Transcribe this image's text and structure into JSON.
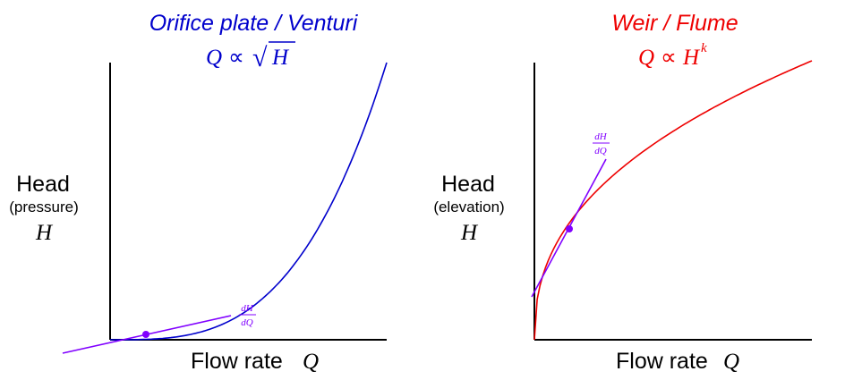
{
  "colors": {
    "left_accent": "#0000cc",
    "right_accent": "#ee0000",
    "tangent": "#8000ff",
    "axis": "#000000"
  },
  "panels": [
    {
      "title": "Orifice plate / Venturi",
      "formula_q": "Q",
      "formula_rel": "∝",
      "formula_radical": "√",
      "formula_h": "H",
      "ylabel_main": "Head",
      "ylabel_sub": "(pressure)",
      "ylabel_var": "H",
      "xlabel": "Flow rate",
      "xlabel_var": "Q",
      "tangent_label_num": "dH",
      "tangent_label_den": "dQ",
      "curve": "square-law",
      "color": "#0000cc"
    },
    {
      "title": "Weir / Flume",
      "formula_q": "Q",
      "formula_rel": "∝",
      "formula_h": "H",
      "formula_exp": "k",
      "ylabel_main": "Head",
      "ylabel_sub": "(elevation)",
      "ylabel_var": "H",
      "xlabel": "Flow rate",
      "xlabel_var": "Q",
      "tangent_label_num": "dH",
      "tangent_label_den": "dQ",
      "curve": "saturating",
      "color": "#ee0000"
    }
  ]
}
